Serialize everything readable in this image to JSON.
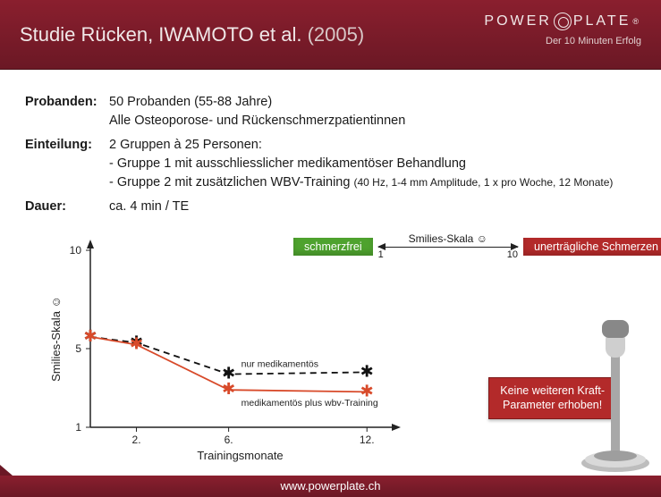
{
  "header": {
    "title_main": "Studie Rücken, IWAMOTO et al.",
    "title_year": "(2005)",
    "brand_left": "POWER",
    "brand_right": "PLATE",
    "brand_sub": "Der 10 Minuten Erfolg",
    "bg_top": "#8a1f2e",
    "bg_bottom": "#6b1825"
  },
  "bullets": {
    "probanden_label": "Probanden:",
    "probanden_line1": "50 Probanden (55-88 Jahre)",
    "probanden_line2": "Alle Osteoporose- und Rückenschmerzpatientinnen",
    "einteilung_label": "Einteilung:",
    "einteilung_line1": "2 Gruppen à 25 Personen:",
    "einteilung_line2": "- Gruppe 1 mit ausschliesslicher medikamentöser Behandlung",
    "einteilung_line3a": "- Gruppe 2 mit zusätzlichen WBV-Training ",
    "einteilung_line3b": "(40 Hz, 1-4 mm Amplitude, 1 x pro Woche, 12 Monate)",
    "dauer_label": "Dauer:",
    "dauer_text": "ca. 4 min / TE"
  },
  "legend": {
    "free": "schmerzfrei",
    "scale_label": "Smilies-Skala ☺",
    "scale_low": "1",
    "scale_high": "10",
    "pain": "unerträgliche Schmerzen",
    "green": "#4ea22e",
    "red": "#b32a2a"
  },
  "note": {
    "line1": "Keine weiteren Kraft-",
    "line2": "Parameter erhoben!"
  },
  "chart": {
    "type": "line",
    "ylabel": "Smilies-Skala ☺",
    "xlabel": "Trainingsmonate",
    "xlim": [
      0,
      13
    ],
    "ylim": [
      1,
      10
    ],
    "yticks": [
      1,
      5,
      10
    ],
    "xticks": [
      2,
      6,
      12
    ],
    "background_color": "#ffffff",
    "axis_color": "#222222",
    "series": [
      {
        "name": "nur medikamentös",
        "label": "nur medikamentös",
        "style": "dashed",
        "color": "#111111",
        "marker": "star",
        "x": [
          0,
          2,
          6,
          12
        ],
        "y": [
          5.6,
          5.3,
          3.7,
          3.8
        ]
      },
      {
        "name": "medikamentös plus wbv-Training",
        "label": "medikamentös plus wbv-Training",
        "style": "solid",
        "color": "#d84a2a",
        "marker": "star",
        "x": [
          0,
          2,
          6,
          12
        ],
        "y": [
          5.6,
          5.2,
          2.9,
          2.8
        ]
      }
    ],
    "annot1": "nur medikamentös",
    "annot2": "medikamentös plus wbv-Training",
    "label_fontsize": 12
  },
  "footer": {
    "url": "www.powerplate.ch"
  }
}
